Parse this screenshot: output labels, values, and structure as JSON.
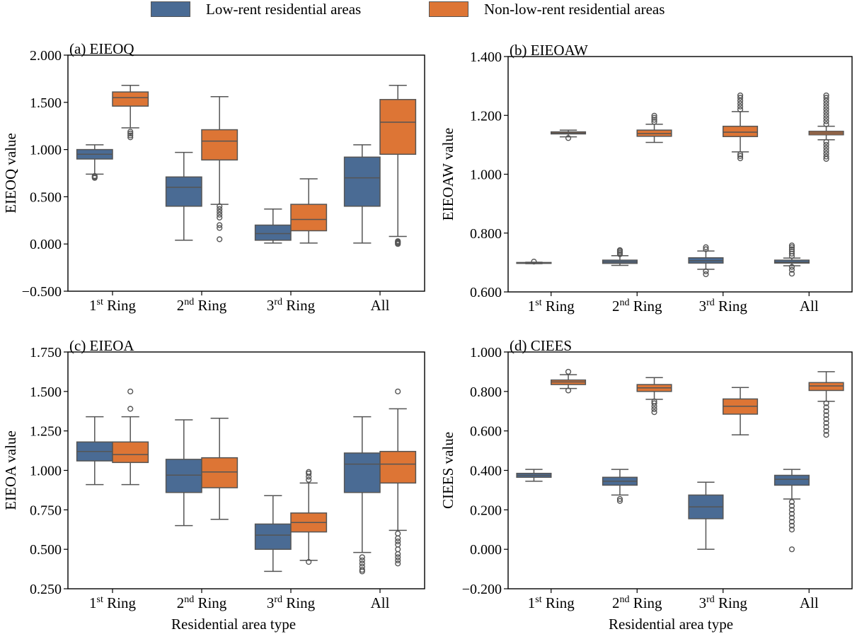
{
  "legend": [
    {
      "label": "Low-rent residential areas",
      "color": "#4a6b94"
    },
    {
      "label": "Non-low-rent residential areas",
      "color": "#dd7535"
    }
  ],
  "xlabel": "Residential area type",
  "chart_data": [
    {
      "type": "box",
      "title": "(a) EIEOQ",
      "ylabel": "EIEOQ value",
      "ylim": [
        -0.5,
        2.0
      ],
      "yticks": [
        "−0.500",
        "0.000",
        "0.500",
        "1.000",
        "1.500",
        "2.000"
      ],
      "categories": [
        {
          "base": "1",
          "sup": "st",
          "rest": " Ring"
        },
        {
          "base": "2",
          "sup": "nd",
          "rest": " Ring"
        },
        {
          "base": "3",
          "sup": "rd",
          "rest": " Ring"
        },
        {
          "base": "All",
          "sup": "",
          "rest": ""
        }
      ],
      "series": [
        {
          "name": "Low-rent residential areas",
          "boxes": [
            {
              "wlo": 0.74,
              "q1": 0.9,
              "med": 0.95,
              "q3": 1.0,
              "whi": 1.05,
              "out": [
                0.7,
                0.71,
                0.72
              ]
            },
            {
              "wlo": 0.04,
              "q1": 0.4,
              "med": 0.6,
              "q3": 0.71,
              "whi": 0.97,
              "out": []
            },
            {
              "wlo": 0.01,
              "q1": 0.04,
              "med": 0.11,
              "q3": 0.2,
              "whi": 0.37,
              "out": []
            },
            {
              "wlo": 0.01,
              "q1": 0.4,
              "med": 0.7,
              "q3": 0.92,
              "whi": 1.05,
              "out": []
            }
          ]
        },
        {
          "name": "Non-low-rent residential areas",
          "boxes": [
            {
              "wlo": 1.23,
              "q1": 1.46,
              "med": 1.55,
              "q3": 1.61,
              "whi": 1.68,
              "out": [
                1.13,
                1.15,
                1.17,
                1.19
              ]
            },
            {
              "wlo": 0.42,
              "q1": 0.89,
              "med": 1.09,
              "q3": 1.21,
              "whi": 1.56,
              "out": [
                0.4,
                0.37,
                0.34,
                0.31,
                0.28,
                0.2,
                0.17,
                0.05
              ]
            },
            {
              "wlo": 0.01,
              "q1": 0.14,
              "med": 0.26,
              "q3": 0.42,
              "whi": 0.69,
              "out": []
            },
            {
              "wlo": 0.08,
              "q1": 0.95,
              "med": 1.29,
              "q3": 1.53,
              "whi": 1.68,
              "out": [
                0.0,
                0.01,
                0.02,
                0.03
              ]
            }
          ]
        }
      ]
    },
    {
      "type": "box",
      "title": "(b) EIEOAW",
      "ylabel": "EIEOAW value",
      "ylim": [
        0.6,
        1.4
      ],
      "yticks": [
        "0.600",
        "0.800",
        "1.000",
        "1.200",
        "1.400"
      ],
      "categories": [
        {
          "base": "1",
          "sup": "st",
          "rest": " Ring"
        },
        {
          "base": "2",
          "sup": "nd",
          "rest": " Ring"
        },
        {
          "base": "3",
          "sup": "rd",
          "rest": " Ring"
        },
        {
          "base": "All",
          "sup": "",
          "rest": ""
        }
      ],
      "series": [
        {
          "name": "Low-rent residential areas",
          "boxes": [
            {
              "wlo": 0.696,
              "q1": 0.697,
              "med": 0.698,
              "q3": 0.7,
              "whi": 0.701,
              "out": [
                0.703
              ]
            },
            {
              "wlo": 0.69,
              "q1": 0.697,
              "med": 0.702,
              "q3": 0.708,
              "whi": 0.723,
              "out": [
                0.728,
                0.733,
                0.738,
                0.742
              ]
            },
            {
              "wlo": 0.677,
              "q1": 0.698,
              "med": 0.706,
              "q3": 0.716,
              "whi": 0.739,
              "out": [
                0.745,
                0.752,
                0.67,
                0.66
              ]
            },
            {
              "wlo": 0.689,
              "q1": 0.698,
              "med": 0.701,
              "q3": 0.708,
              "whi": 0.715,
              "out": [
                0.722,
                0.73,
                0.738,
                0.745,
                0.752,
                0.758,
                0.685,
                0.675,
                0.662
              ]
            }
          ]
        },
        {
          "name": "Non-low-rent residential areas",
          "boxes": [
            {
              "wlo": 1.127,
              "q1": 1.137,
              "med": 1.14,
              "q3": 1.144,
              "whi": 1.15,
              "out": [
                1.123
              ]
            },
            {
              "wlo": 1.108,
              "q1": 1.129,
              "med": 1.138,
              "q3": 1.15,
              "whi": 1.17,
              "out": [
                1.178,
                1.185,
                1.192,
                1.199
              ]
            },
            {
              "wlo": 1.076,
              "q1": 1.128,
              "med": 1.143,
              "q3": 1.163,
              "whi": 1.213,
              "out": [
                1.22,
                1.23,
                1.24,
                1.25,
                1.26,
                1.268,
                1.068,
                1.062,
                1.054
              ]
            },
            {
              "wlo": 1.117,
              "q1": 1.134,
              "med": 1.14,
              "q3": 1.146,
              "whi": 1.163,
              "out": [
                1.17,
                1.18,
                1.19,
                1.2,
                1.21,
                1.22,
                1.23,
                1.24,
                1.25,
                1.26,
                1.268,
                1.11,
                1.1,
                1.09,
                1.08,
                1.07,
                1.06,
                1.052
              ]
            }
          ]
        }
      ]
    },
    {
      "type": "box",
      "title": "(c) EIEOA",
      "ylabel": "EIEOA value",
      "ylim": [
        0.25,
        1.75
      ],
      "yticks": [
        "0.250",
        "0.500",
        "0.750",
        "1.000",
        "1.250",
        "1.500",
        "1.750"
      ],
      "categories": [
        {
          "base": "1",
          "sup": "st",
          "rest": " Ring"
        },
        {
          "base": "2",
          "sup": "nd",
          "rest": " Ring"
        },
        {
          "base": "3",
          "sup": "rd",
          "rest": " Ring"
        },
        {
          "base": "All",
          "sup": "",
          "rest": ""
        }
      ],
      "series": [
        {
          "name": "Low-rent residential areas",
          "boxes": [
            {
              "wlo": 0.91,
              "q1": 1.06,
              "med": 1.12,
              "q3": 1.18,
              "whi": 1.34,
              "out": []
            },
            {
              "wlo": 0.65,
              "q1": 0.86,
              "med": 0.97,
              "q3": 1.07,
              "whi": 1.32,
              "out": []
            },
            {
              "wlo": 0.36,
              "q1": 0.5,
              "med": 0.59,
              "q3": 0.66,
              "whi": 0.84,
              "out": []
            },
            {
              "wlo": 0.48,
              "q1": 0.86,
              "med": 1.04,
              "q3": 1.11,
              "whi": 1.34,
              "out": [
                0.45,
                0.43,
                0.41,
                0.39,
                0.37,
                0.36
              ]
            }
          ]
        },
        {
          "name": "Non-low-rent residential areas",
          "boxes": [
            {
              "wlo": 0.91,
              "q1": 1.05,
              "med": 1.1,
              "q3": 1.18,
              "whi": 1.34,
              "out": [
                1.39,
                1.5
              ]
            },
            {
              "wlo": 0.69,
              "q1": 0.89,
              "med": 0.99,
              "q3": 1.08,
              "whi": 1.33,
              "out": []
            },
            {
              "wlo": 0.43,
              "q1": 0.61,
              "med": 0.67,
              "q3": 0.73,
              "whi": 0.92,
              "out": [
                0.94,
                0.96,
                0.98,
                0.99,
                0.42
              ]
            },
            {
              "wlo": 0.62,
              "q1": 0.92,
              "med": 1.04,
              "q3": 1.12,
              "whi": 1.39,
              "out": [
                1.5,
                0.6,
                0.57,
                0.55,
                0.53,
                0.5,
                0.47,
                0.45,
                0.43,
                0.41
              ]
            }
          ]
        }
      ]
    },
    {
      "type": "box",
      "title": "(d) CIEES",
      "ylabel": "CIEES value",
      "ylim": [
        -0.2,
        1.0
      ],
      "yticks": [
        "−0.200",
        "0.000",
        "0.200",
        "0.400",
        "0.600",
        "0.800",
        "1.000"
      ],
      "categories": [
        {
          "base": "1",
          "sup": "st",
          "rest": " Ring"
        },
        {
          "base": "2",
          "sup": "nd",
          "rest": " Ring"
        },
        {
          "base": "3",
          "sup": "rd",
          "rest": " Ring"
        },
        {
          "base": "All",
          "sup": "",
          "rest": ""
        }
      ],
      "series": [
        {
          "name": "Low-rent residential areas",
          "boxes": [
            {
              "wlo": 0.345,
              "q1": 0.365,
              "med": 0.375,
              "q3": 0.385,
              "whi": 0.405,
              "out": []
            },
            {
              "wlo": 0.275,
              "q1": 0.325,
              "med": 0.345,
              "q3": 0.365,
              "whi": 0.405,
              "out": [
                0.255,
                0.245
              ]
            },
            {
              "wlo": 0.0,
              "q1": 0.155,
              "med": 0.215,
              "q3": 0.275,
              "whi": 0.34,
              "out": []
            },
            {
              "wlo": 0.255,
              "q1": 0.325,
              "med": 0.355,
              "q3": 0.375,
              "whi": 0.405,
              "out": [
                0.24,
                0.22,
                0.2,
                0.18,
                0.16,
                0.14,
                0.12,
                0.1,
                0.0
              ]
            }
          ]
        },
        {
          "name": "Non-low-rent residential areas",
          "boxes": [
            {
              "wlo": 0.815,
              "q1": 0.835,
              "med": 0.848,
              "q3": 0.858,
              "whi": 0.885,
              "out": [
                0.9,
                0.805
              ]
            },
            {
              "wlo": 0.76,
              "q1": 0.8,
              "med": 0.818,
              "q3": 0.835,
              "whi": 0.87,
              "out": [
                0.75,
                0.74,
                0.725,
                0.71,
                0.695
              ]
            },
            {
              "wlo": 0.58,
              "q1": 0.685,
              "med": 0.725,
              "q3": 0.762,
              "whi": 0.82,
              "out": []
            },
            {
              "wlo": 0.75,
              "q1": 0.805,
              "med": 0.828,
              "q3": 0.845,
              "whi": 0.9,
              "out": [
                0.74,
                0.72,
                0.7,
                0.68,
                0.66,
                0.64,
                0.62,
                0.6,
                0.58
              ]
            }
          ]
        }
      ]
    }
  ]
}
